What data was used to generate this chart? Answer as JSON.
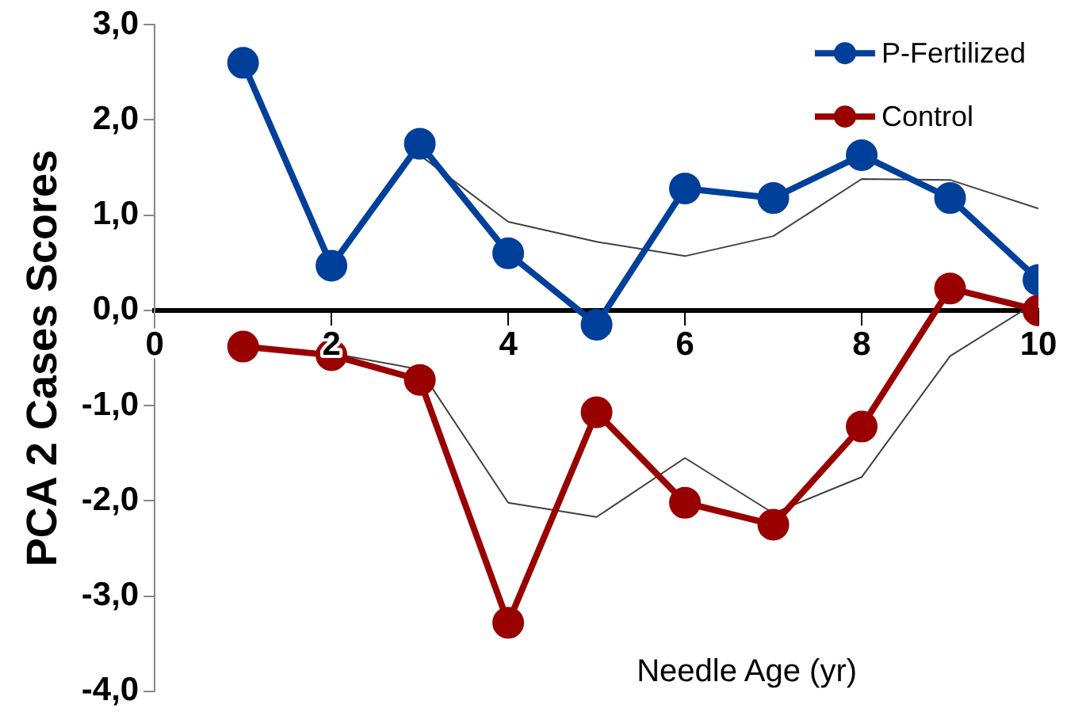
{
  "chart_data": {
    "type": "line",
    "xlabel": "Needle Age (yr)",
    "ylabel": "PCA 2 Cases Scores",
    "x": [
      1,
      2,
      3,
      4,
      5,
      6,
      7,
      8,
      9,
      10
    ],
    "series": [
      {
        "name": "P-Fertilized",
        "color": "#003f9a",
        "values": [
          2.6,
          0.47,
          1.75,
          0.6,
          -0.15,
          1.28,
          1.18,
          1.63,
          1.18,
          0.32
        ]
      },
      {
        "name": "Control",
        "color": "#990000",
        "values": [
          -0.38,
          -0.47,
          -0.73,
          -3.28,
          -1.07,
          -2.02,
          -2.25,
          -1.22,
          0.23,
          0
        ]
      },
      {
        "color": "#404040",
        "marker": "none",
        "values": [
          null,
          null,
          1.63,
          0.93,
          0.72,
          0.57,
          0.78,
          1.38,
          1.37,
          1.07
        ]
      },
      {
        "color": "#404040",
        "marker": "none",
        "values": [
          null,
          -0.45,
          -0.62,
          -2.02,
          -2.17,
          -1.55,
          -2.13,
          -1.75,
          -0.48,
          0.1
        ]
      }
    ],
    "xlim": [
      0,
      10
    ],
    "xticks": [
      0,
      2,
      4,
      6,
      8,
      10
    ],
    "ylim": [
      -4,
      3
    ],
    "yticks": [
      {
        "value": -4,
        "label": "-4,0"
      },
      {
        "value": -3,
        "label": "-3,0"
      },
      {
        "value": -2,
        "label": "-2,0"
      },
      {
        "value": -1,
        "label": "-1,0"
      },
      {
        "value": 0,
        "label": "0,0"
      },
      {
        "value": 1,
        "label": "1,0"
      },
      {
        "value": 2,
        "label": "2,0"
      },
      {
        "value": 3,
        "label": "3,0"
      }
    ],
    "grid": false,
    "legend": "top right",
    "marker": "circle",
    "line_style": "solid"
  }
}
